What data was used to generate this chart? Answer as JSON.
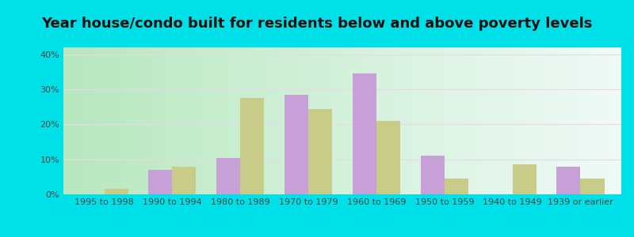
{
  "title": "Year house/condo built for residents below and above poverty levels",
  "categories": [
    "1995 to 1998",
    "1990 to 1994",
    "1980 to 1989",
    "1970 to 1979",
    "1960 to 1969",
    "1950 to 1959",
    "1940 to 1949",
    "1939 or earlier"
  ],
  "below_poverty": [
    0,
    7,
    10.5,
    28.5,
    34.5,
    11,
    0,
    8
  ],
  "above_poverty": [
    1.5,
    8,
    27.5,
    24.5,
    21,
    4.5,
    8.5,
    4.5
  ],
  "below_color": "#c8a0d8",
  "above_color": "#c8cc88",
  "background_left": "#b8e8c0",
  "background_right": "#f0f8f0",
  "outer_background": "#00e0e8",
  "ylim": [
    0,
    42
  ],
  "yticks": [
    0,
    10,
    20,
    30,
    40
  ],
  "ytick_labels": [
    "0%",
    "10%",
    "20%",
    "30%",
    "40%"
  ],
  "grid_color": "#e0e8e0",
  "title_fontsize": 13,
  "tick_fontsize": 8,
  "legend_fontsize": 9
}
